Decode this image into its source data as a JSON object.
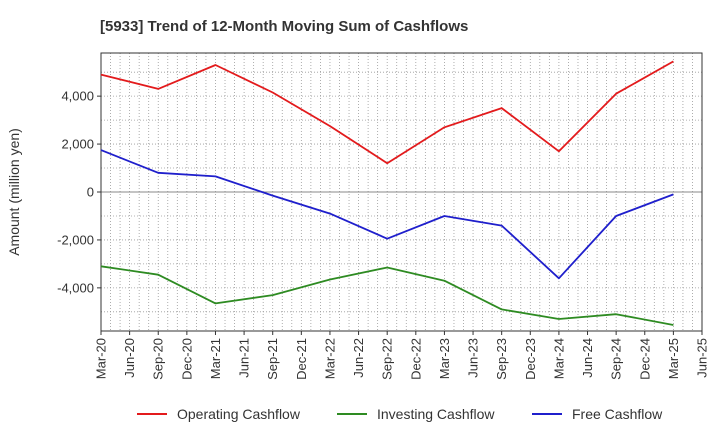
{
  "chart_data": {
    "type": "line",
    "title": "[5933]  Trend of 12-Month Moving Sum of Cashflows",
    "ylabel": "Amount (million yen)",
    "xlabel": "",
    "x_ticks": [
      "Mar-20",
      "Jun-20",
      "Sep-20",
      "Dec-20",
      "Mar-21",
      "Jun-21",
      "Sep-21",
      "Dec-21",
      "Mar-22",
      "Jun-22",
      "Sep-22",
      "Dec-22",
      "Mar-23",
      "Jun-23",
      "Sep-23",
      "Dec-23",
      "Mar-24",
      "Jun-24",
      "Sep-24",
      "Dec-24",
      "Mar-25",
      "Jun-25"
    ],
    "y_ticks": [
      -4000,
      -2000,
      0,
      2000,
      4000
    ],
    "ylim": [
      -5800,
      5800
    ],
    "grid": true,
    "legend_position": "bottom",
    "series": [
      {
        "name": "Operating Cashflow",
        "color": "#e31a1c",
        "x": [
          "Mar-20",
          "Sep-20",
          "Mar-21",
          "Sep-21",
          "Mar-22",
          "Sep-22",
          "Mar-23",
          "Sep-23",
          "Mar-24",
          "Sep-24",
          "Mar-25"
        ],
        "values": [
          4900,
          4300,
          5300,
          4150,
          2750,
          1200,
          2700,
          3500,
          1700,
          4100,
          5450
        ]
      },
      {
        "name": "Investing Cashflow",
        "color": "#2e8b22",
        "x": [
          "Mar-20",
          "Sep-20",
          "Mar-21",
          "Sep-21",
          "Mar-22",
          "Sep-22",
          "Mar-23",
          "Sep-23",
          "Mar-24",
          "Sep-24",
          "Mar-25"
        ],
        "values": [
          -3100,
          -3450,
          -4650,
          -4300,
          -3650,
          -3150,
          -3700,
          -4900,
          -5300,
          -5100,
          -5550
        ]
      },
      {
        "name": "Free Cashflow",
        "color": "#1f1fcc",
        "x": [
          "Mar-20",
          "Sep-20",
          "Mar-21",
          "Sep-21",
          "Mar-22",
          "Sep-22",
          "Mar-23",
          "Sep-23",
          "Mar-24",
          "Sep-24",
          "Mar-25"
        ],
        "values": [
          1750,
          800,
          650,
          -150,
          -900,
          -1950,
          -1000,
          -1400,
          -3600,
          -1000,
          -100
        ]
      }
    ]
  }
}
